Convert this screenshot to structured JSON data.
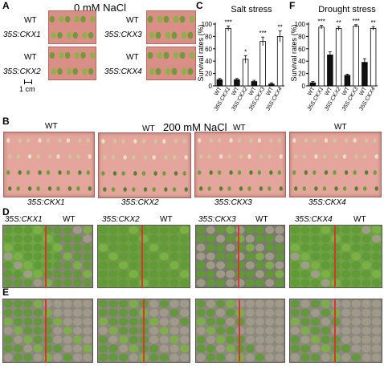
{
  "panelA": {
    "letter": "A",
    "title": "0 mM NaCl",
    "wt": "WT",
    "lines": [
      "35S:CKX1",
      "35S:CKX3",
      "35S:CKX2",
      "35S:CKX4"
    ],
    "scale": "1 cm"
  },
  "panelB": {
    "letter": "B",
    "title": "200 mM NaCl",
    "wt": "WT",
    "lines": [
      "35S:CKX1",
      "35S:CKX2",
      "35S:CKX3",
      "35S:CKX4"
    ]
  },
  "panelD": {
    "letter": "D",
    "wt": "WT",
    "lines": [
      "35S:CKX1",
      "35S:CKX2",
      "35S:CKX3",
      "35S:CKX4"
    ]
  },
  "panelE": {
    "letter": "E"
  },
  "colors": {
    "plate": "#d98f86",
    "seedling": "#6f9a3a",
    "soil": "#8a8378",
    "divider": "#d23a2a"
  },
  "chart_data": [
    {
      "letter": "C",
      "type": "bar",
      "title": "Salt stress",
      "ylabel": "Survival rates (%)",
      "ylim": [
        0,
        100
      ],
      "yticks": [
        "0",
        "20",
        "40",
        "60",
        "80",
        "100"
      ],
      "categories": [
        "WT",
        "35S:CKX1",
        "WT",
        "35S:CKX2",
        "WT",
        "35S:CKX3",
        "WT",
        "35S:CKX4"
      ],
      "values": [
        10,
        93,
        10,
        43,
        7,
        72,
        3,
        80
      ],
      "errors": [
        2,
        4,
        2,
        6,
        2,
        7,
        2,
        9
      ],
      "bar_fill": [
        "black",
        "white",
        "black",
        "white",
        "black",
        "white",
        "black",
        "white"
      ],
      "annotations": [
        "",
        "***",
        "",
        "*",
        "",
        "***",
        "",
        "**"
      ]
    },
    {
      "letter": "F",
      "type": "bar",
      "title": "Drought stress",
      "ylabel": "Survival rates (%)",
      "ylim": [
        0,
        100
      ],
      "yticks": [
        "0",
        "20",
        "40",
        "60",
        "80",
        "100"
      ],
      "categories": [
        "WT",
        "35S:CKX1",
        "WT",
        "35S:CKX2",
        "WT",
        "35S:CKX3",
        "WT",
        "35S:CKX4"
      ],
      "values": [
        5,
        95,
        50,
        93,
        17,
        97,
        38,
        93
      ],
      "errors": [
        2,
        3,
        5,
        3,
        2,
        2,
        6,
        3
      ],
      "bar_fill": [
        "black",
        "white",
        "black",
        "white",
        "black",
        "white",
        "black",
        "white"
      ],
      "annotations": [
        "",
        "***",
        "",
        "**",
        "",
        "***",
        "",
        "**"
      ]
    }
  ]
}
